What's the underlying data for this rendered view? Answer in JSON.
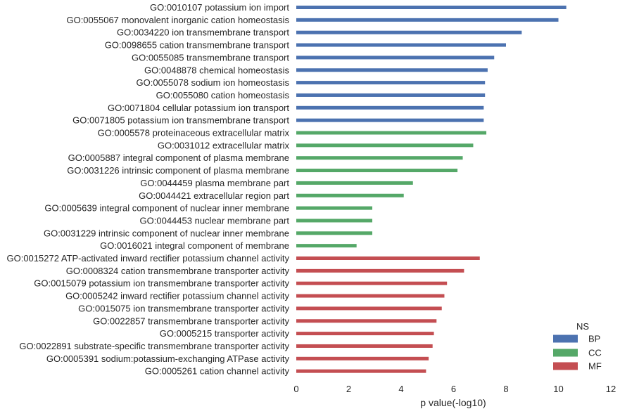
{
  "chart_data": {
    "type": "bar",
    "orientation": "horizontal",
    "title": "",
    "xlabel": "p value(-log10)",
    "ylabel": "",
    "xlim": [
      0,
      12
    ],
    "xticks": [
      "0",
      "2",
      "4",
      "6",
      "8",
      "10",
      "12"
    ],
    "grid": false,
    "legend": {
      "title": "NS",
      "placement": "bottom-right",
      "entries": [
        {
          "name": "BP",
          "color": "#4c72b0"
        },
        {
          "name": "CC",
          "color": "#55a868"
        },
        {
          "name": "MF",
          "color": "#c44e52"
        }
      ]
    },
    "categories": [
      "GO:0010107 potassium ion import",
      "GO:0055067 monovalent inorganic cation homeostasis",
      "GO:0034220 ion transmembrane transport",
      "GO:0098655 cation transmembrane transport",
      "GO:0055085 transmembrane transport",
      "GO:0048878 chemical homeostasis",
      "GO:0055078 sodium ion homeostasis",
      "GO:0055080 cation homeostasis",
      "GO:0071804 cellular potassium ion transport",
      "GO:0071805 potassium ion transmembrane transport",
      "GO:0005578 proteinaceous extracellular matrix",
      "GO:0031012 extracellular matrix",
      "GO:0005887 integral component of plasma membrane",
      "GO:0031226 intrinsic component of plasma membrane",
      "GO:0044459 plasma membrane part",
      "GO:0044421 extracellular region part",
      "GO:0005639 integral component of nuclear inner membrane",
      "GO:0044453 nuclear membrane part",
      "GO:0031229 intrinsic component of nuclear inner membrane",
      "GO:0016021 integral component of membrane",
      "GO:0015272 ATP-activated inward rectifier potassium channel activity",
      "GO:0008324 cation transmembrane transporter activity",
      "GO:0015079 potassium ion transmembrane transporter activity",
      "GO:0005242 inward rectifier potassium channel activity",
      "GO:0015075 ion transmembrane transporter activity",
      "GO:0022857 transmembrane transporter activity",
      "GO:0005215 transporter activity",
      "GO:0022891 substrate-specific transmembrane transporter activity",
      "GO:0005391 sodium:potassium-exchanging ATPase activity",
      "GO:0005261 cation channel activity"
    ],
    "values": [
      10.3,
      10.0,
      8.6,
      8.0,
      7.55,
      7.3,
      7.2,
      7.2,
      7.15,
      7.15,
      7.25,
      6.75,
      6.35,
      6.15,
      4.45,
      4.1,
      2.9,
      2.9,
      2.9,
      2.3,
      7.0,
      6.4,
      5.75,
      5.65,
      5.55,
      5.35,
      5.25,
      5.2,
      5.05,
      4.95
    ],
    "groups": [
      "BP",
      "BP",
      "BP",
      "BP",
      "BP",
      "BP",
      "BP",
      "BP",
      "BP",
      "BP",
      "CC",
      "CC",
      "CC",
      "CC",
      "CC",
      "CC",
      "CC",
      "CC",
      "CC",
      "CC",
      "MF",
      "MF",
      "MF",
      "MF",
      "MF",
      "MF",
      "MF",
      "MF",
      "MF",
      "MF"
    ]
  }
}
